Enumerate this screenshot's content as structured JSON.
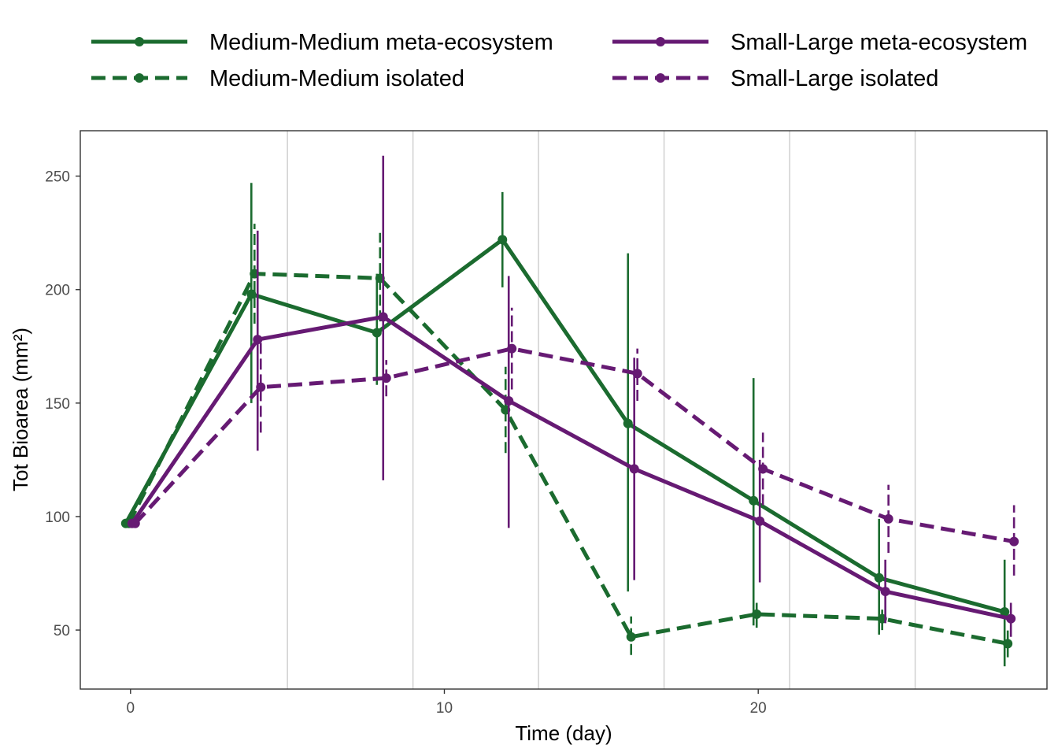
{
  "chart_data": {
    "type": "line",
    "xlabel": "Time (day)",
    "ylabel": "Tot Bioarea (mm²)",
    "xlim": [
      -1.6,
      29.2
    ],
    "ylim": [
      24,
      270
    ],
    "x_ticks": [
      0,
      10,
      20
    ],
    "y_ticks": [
      50,
      100,
      150,
      200,
      250
    ],
    "vertical_reference_lines": [
      5,
      9,
      13,
      17,
      21,
      25
    ],
    "grid": false,
    "legend_position": "top",
    "series": [
      {
        "name": "Medium-Medium meta-ecosystem",
        "color": "#1b6b2f",
        "linestyle": "solid",
        "points": [
          {
            "x": -0.15,
            "y": 97,
            "lo": 97,
            "hi": 97
          },
          {
            "x": 3.85,
            "y": 198,
            "lo": 150,
            "hi": 247
          },
          {
            "x": 7.85,
            "y": 181,
            "lo": 158,
            "hi": 207
          },
          {
            "x": 11.85,
            "y": 222,
            "lo": 201,
            "hi": 243
          },
          {
            "x": 15.85,
            "y": 141,
            "lo": 67,
            "hi": 216
          },
          {
            "x": 19.85,
            "y": 107,
            "lo": 52,
            "hi": 161
          },
          {
            "x": 23.85,
            "y": 73,
            "lo": 48,
            "hi": 99
          },
          {
            "x": 27.85,
            "y": 58,
            "lo": 34,
            "hi": 81
          }
        ]
      },
      {
        "name": "Medium-Medium isolated",
        "color": "#1b6b2f",
        "linestyle": "dashed",
        "points": [
          {
            "x": -0.05,
            "y": 97,
            "lo": 97,
            "hi": 97
          },
          {
            "x": 3.95,
            "y": 207,
            "lo": 185,
            "hi": 229
          },
          {
            "x": 7.95,
            "y": 205,
            "lo": 186,
            "hi": 225
          },
          {
            "x": 11.95,
            "y": 147,
            "lo": 128,
            "hi": 166
          },
          {
            "x": 15.95,
            "y": 47,
            "lo": 39,
            "hi": 56
          },
          {
            "x": 19.95,
            "y": 57,
            "lo": 51,
            "hi": 62
          },
          {
            "x": 23.95,
            "y": 55,
            "lo": 50,
            "hi": 59
          },
          {
            "x": 27.95,
            "y": 44,
            "lo": 38,
            "hi": 51
          }
        ]
      },
      {
        "name": "Small-Large meta-ecosystem",
        "color": "#661a73",
        "linestyle": "solid",
        "points": [
          {
            "x": 0.05,
            "y": 97,
            "lo": 97,
            "hi": 97
          },
          {
            "x": 4.05,
            "y": 178,
            "lo": 129,
            "hi": 226
          },
          {
            "x": 8.05,
            "y": 188,
            "lo": 116,
            "hi": 259
          },
          {
            "x": 12.05,
            "y": 151,
            "lo": 95,
            "hi": 206
          },
          {
            "x": 16.05,
            "y": 121,
            "lo": 72,
            "hi": 170
          },
          {
            "x": 20.05,
            "y": 98,
            "lo": 71,
            "hi": 125
          },
          {
            "x": 24.05,
            "y": 67,
            "lo": 53,
            "hi": 81
          },
          {
            "x": 28.05,
            "y": 55,
            "lo": 47,
            "hi": 62
          }
        ]
      },
      {
        "name": "Small-Large isolated",
        "color": "#661a73",
        "linestyle": "dashed",
        "points": [
          {
            "x": 0.15,
            "y": 97,
            "lo": 97,
            "hi": 97
          },
          {
            "x": 4.15,
            "y": 157,
            "lo": 137,
            "hi": 178
          },
          {
            "x": 8.15,
            "y": 161,
            "lo": 153,
            "hi": 169
          },
          {
            "x": 12.15,
            "y": 174,
            "lo": 156,
            "hi": 192
          },
          {
            "x": 16.15,
            "y": 163,
            "lo": 151,
            "hi": 174
          },
          {
            "x": 20.15,
            "y": 121,
            "lo": 105,
            "hi": 137
          },
          {
            "x": 24.15,
            "y": 99,
            "lo": 84,
            "hi": 114
          },
          {
            "x": 28.15,
            "y": 89,
            "lo": 74,
            "hi": 105
          }
        ]
      }
    ]
  }
}
